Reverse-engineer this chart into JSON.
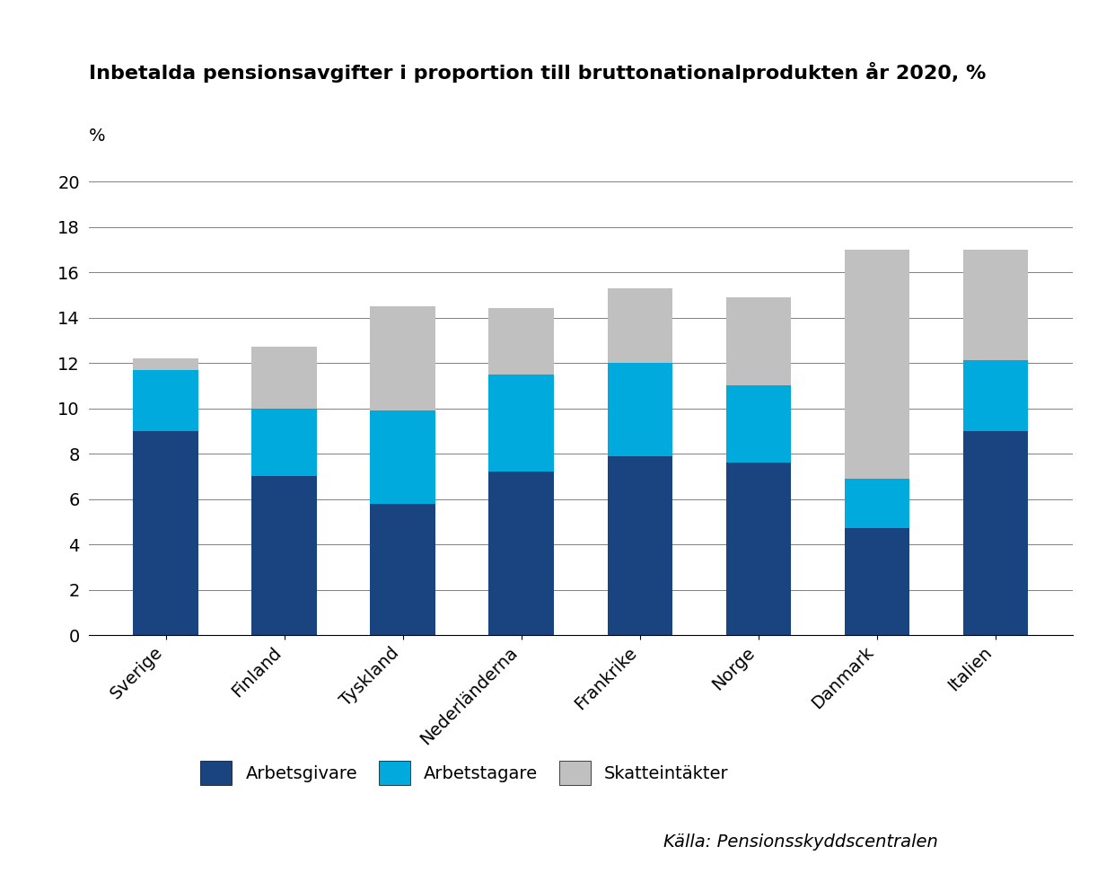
{
  "categories": [
    "Sverige",
    "Finland",
    "Tyskland",
    "Nederländerna",
    "Frankrike",
    "Norge",
    "Danmark",
    "Italien"
  ],
  "arbetsgivare": [
    9.0,
    7.0,
    5.8,
    7.2,
    7.9,
    7.6,
    4.7,
    9.0
  ],
  "arbetstagare": [
    2.7,
    3.0,
    4.1,
    4.3,
    4.1,
    3.4,
    2.2,
    3.1
  ],
  "skatteintakter": [
    0.5,
    2.7,
    4.6,
    2.9,
    3.3,
    3.9,
    10.1,
    4.9
  ],
  "colors": {
    "arbetsgivare": "#1a4480",
    "arbetstagare": "#00aadd",
    "skatteintakter": "#c0c0c0"
  },
  "title": "Inbetalda pensionsavgifter i proportion till bruttonationalprodukten år 2020, %",
  "ylabel": "%",
  "ylim": [
    0,
    21
  ],
  "yticks": [
    0,
    2,
    4,
    6,
    8,
    10,
    12,
    14,
    16,
    18,
    20
  ],
  "legend_labels": [
    "Arbetsgivare",
    "Arbetstagare",
    "Skatteintäkter"
  ],
  "source": "Källa: Pensionsskyddscentralen",
  "title_fontsize": 16,
  "axis_fontsize": 14,
  "legend_fontsize": 14
}
